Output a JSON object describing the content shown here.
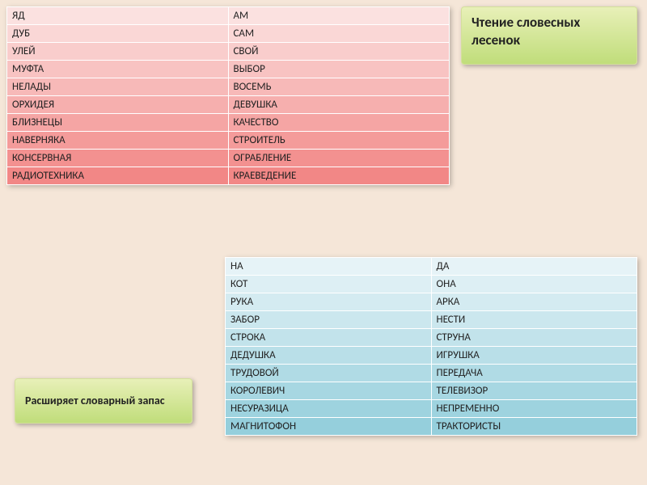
{
  "title_callout": "Чтение словесных лесенок",
  "sub_callout": "Расширяет словарный запас",
  "pink_table": {
    "row_colors": [
      "#fbe1e0",
      "#fad7d6",
      "#f9cdcc",
      "#f8c3c2",
      "#f7b9b8",
      "#f6afae",
      "#f5a5a4",
      "#f49b9a",
      "#f39190",
      "#f28786"
    ],
    "border_color": "#ffffff",
    "rows": [
      [
        "ЯД",
        "АМ"
      ],
      [
        "ДУБ",
        "САМ"
      ],
      [
        "УЛЕЙ",
        "СВОЙ"
      ],
      [
        "МУФТА",
        "ВЫБОР"
      ],
      [
        "НЕЛАДЫ",
        "ВОСЕМЬ"
      ],
      [
        "ОРХИДЕЯ",
        "ДЕВУШКА"
      ],
      [
        "БЛИЗНЕЦЫ",
        "КАЧЕСТВО"
      ],
      [
        "НАВЕРНЯКА",
        "СТРОИТЕЛЬ"
      ],
      [
        "КОНСЕРВНАЯ",
        "ОГРАБЛЕНИЕ"
      ],
      [
        "РАДИОТЕХНИКА",
        "КРАЕВЕДЕНИЕ"
      ]
    ]
  },
  "blue_table": {
    "row_colors": [
      "#e6f3f7",
      "#ddeff4",
      "#d4ebf1",
      "#cbe7ee",
      "#c2e3eb",
      "#b9dfe8",
      "#b0dbe5",
      "#a7d7e2",
      "#9ed3df",
      "#95cfdc"
    ],
    "border_color": "#ffffff",
    "rows": [
      [
        "НА",
        "ДА"
      ],
      [
        "КОТ",
        "ОНА"
      ],
      [
        "РУКА",
        "АРКА"
      ],
      [
        "ЗАБОР",
        "НЕСТИ"
      ],
      [
        "СТРОКА",
        "СТРУНА"
      ],
      [
        "ДЕДУШКА",
        "ИГРУШКА"
      ],
      [
        "ТРУДОВОЙ",
        "ПЕРЕДАЧА"
      ],
      [
        "КОРОЛЕВИЧ",
        "ТЕЛЕВИЗОР"
      ],
      [
        "НЕСУРАЗИЦА",
        "НЕПРЕМЕННО"
      ],
      [
        "МАГНИТОФОН",
        "ТРАКТОРИСТЫ"
      ]
    ]
  },
  "background_color": "#f5e6d8",
  "callout_gradient": [
    "#e8f0b8",
    "#c0dd7a"
  ]
}
